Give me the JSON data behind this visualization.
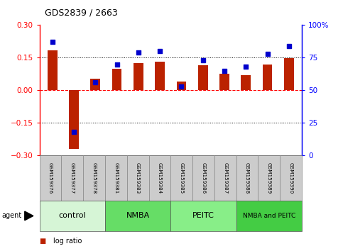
{
  "title": "GDS2839 / 2663",
  "samples": [
    "GSM159376",
    "GSM159377",
    "GSM159378",
    "GSM159381",
    "GSM159383",
    "GSM159384",
    "GSM159385",
    "GSM159386",
    "GSM159387",
    "GSM159388",
    "GSM159389",
    "GSM159390"
  ],
  "log_ratio": [
    0.185,
    -0.27,
    0.055,
    0.1,
    0.125,
    0.132,
    0.04,
    0.115,
    0.075,
    0.07,
    0.12,
    0.148
  ],
  "percentile": [
    87,
    18,
    56,
    70,
    79,
    80,
    53,
    73,
    65,
    68,
    78,
    84
  ],
  "groups": [
    {
      "label": "control",
      "start": 0,
      "end": 3,
      "color": "#d6f5d6"
    },
    {
      "label": "NMBA",
      "start": 3,
      "end": 6,
      "color": "#66dd66"
    },
    {
      "label": "PEITC",
      "start": 6,
      "end": 9,
      "color": "#88ee88"
    },
    {
      "label": "NMBA and PEITC",
      "start": 9,
      "end": 12,
      "color": "#44cc44"
    }
  ],
  "ylim_left": [
    -0.3,
    0.3
  ],
  "ylim_right": [
    0,
    100
  ],
  "yticks_left": [
    -0.3,
    -0.15,
    0,
    0.15,
    0.3
  ],
  "yticks_right": [
    0,
    25,
    50,
    75,
    100
  ],
  "bar_color": "#bb2200",
  "scatter_color": "#0000cc",
  "bar_width": 0.45,
  "scatter_size": 22
}
